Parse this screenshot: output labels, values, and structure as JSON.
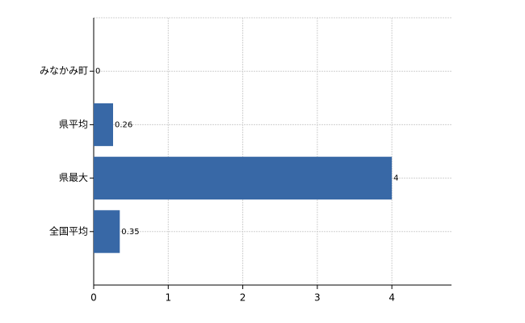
{
  "chart_data": {
    "type": "hbar",
    "categories": [
      "みなかみ町",
      "県平均",
      "県最大",
      "全国平均"
    ],
    "values": [
      0,
      0.26,
      4,
      0.35
    ],
    "color": "#3868a6",
    "xlim": [
      0,
      4.8
    ],
    "xticks": [
      0,
      1,
      2,
      3,
      4
    ],
    "grid": true
  }
}
